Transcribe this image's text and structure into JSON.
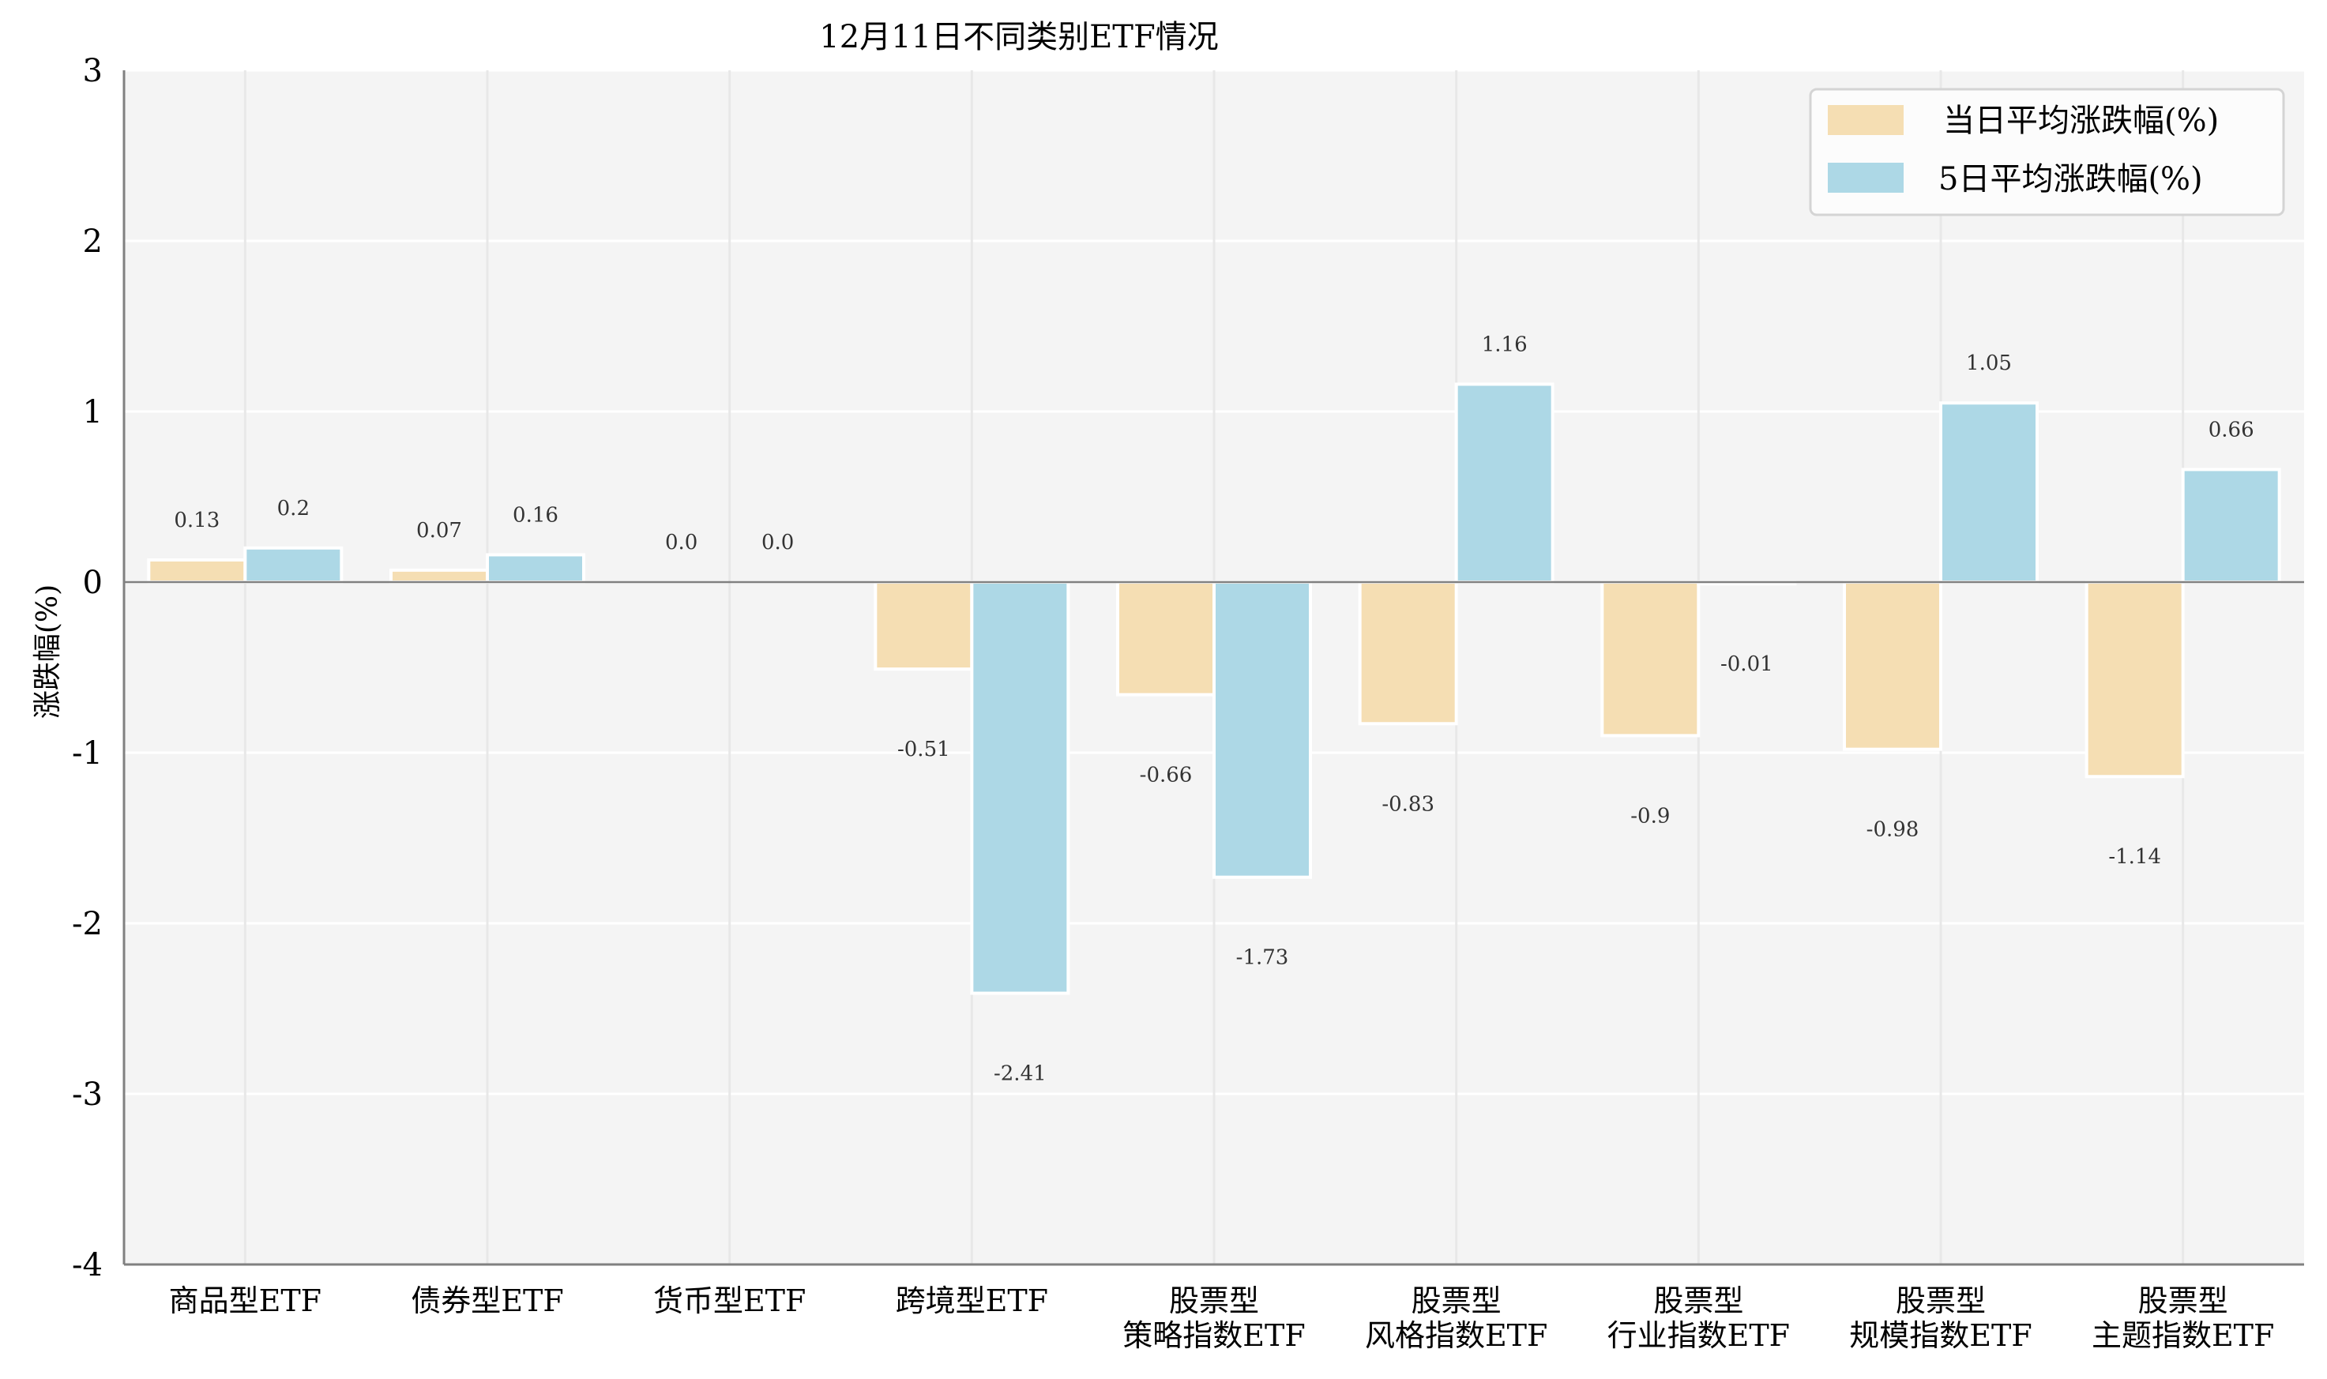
{
  "chart_data": {
    "type": "bar",
    "title": "12月11日不同类别ETF情况",
    "xlabel": "",
    "ylabel": "涨跌幅(%)",
    "ylim": [
      -4,
      3
    ],
    "yticks": [
      3,
      2,
      1,
      0,
      -1,
      -2,
      -3,
      -4
    ],
    "grid": true,
    "legend_position": "upper right",
    "categories": [
      [
        "商品型ETF"
      ],
      [
        "债券型ETF"
      ],
      [
        "货币型ETF"
      ],
      [
        "跨境型ETF"
      ],
      [
        "股票型",
        "策略指数ETF"
      ],
      [
        "股票型",
        "风格指数ETF"
      ],
      [
        "股票型",
        "行业指数ETF"
      ],
      [
        "股票型",
        "规模指数ETF"
      ],
      [
        "股票型",
        "主题指数ETF"
      ]
    ],
    "series": [
      {
        "name": "当日平均涨跌幅(%)",
        "color": "#f5deb3",
        "values": [
          0.13,
          0.07,
          0.0,
          -0.51,
          -0.66,
          -0.83,
          -0.9,
          -0.98,
          -1.14
        ],
        "labels": [
          "0.13",
          "0.07",
          "0.0",
          "-0.51",
          "-0.66",
          "-0.83",
          "-0.9",
          "-0.98",
          "-1.14"
        ]
      },
      {
        "name": "5日平均涨跌幅(%)",
        "color": "#add8e6",
        "values": [
          0.2,
          0.16,
          0.0,
          -2.41,
          -1.73,
          1.16,
          -0.01,
          1.05,
          0.66
        ],
        "labels": [
          "0.2",
          "0.16",
          "0.0",
          "-2.41",
          "-1.73",
          "1.16",
          "-0.01",
          "1.05",
          "0.66"
        ]
      }
    ]
  },
  "style": {
    "plot_bg": "#f4f4f4",
    "grid_color": "#ffffff",
    "vgrid_color": "#e8e8e8",
    "axis_color": "#808080",
    "zero_line_color": "#808080",
    "bar_edge": "#ffffff"
  }
}
